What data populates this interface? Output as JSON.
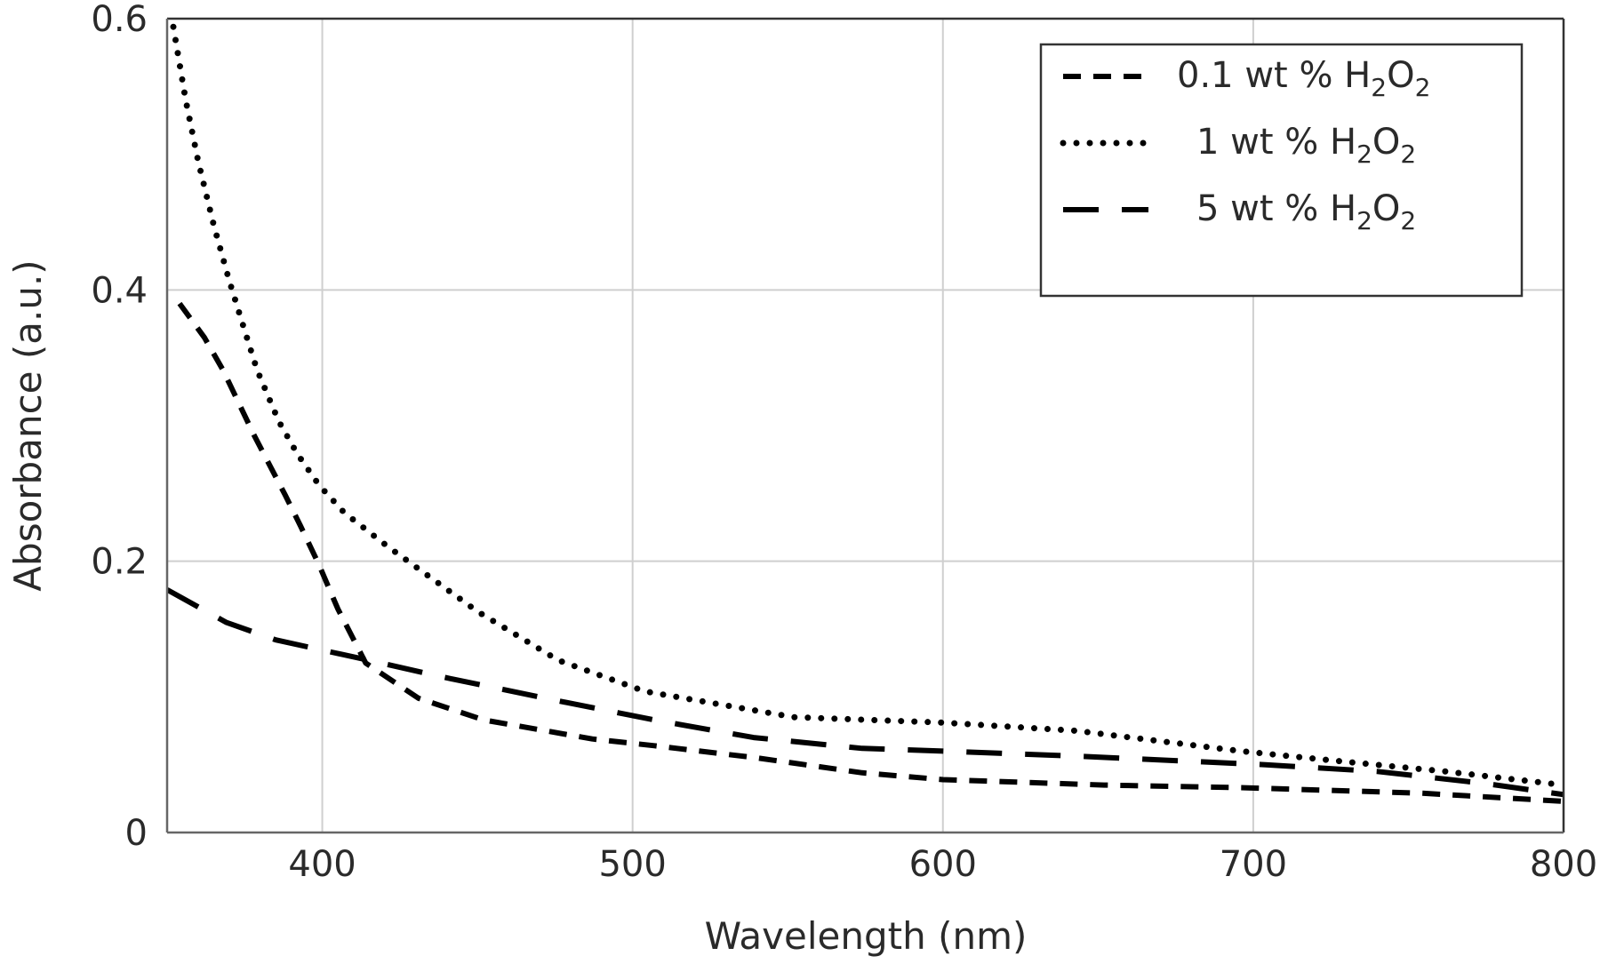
{
  "chart_data": {
    "type": "line",
    "title": "",
    "xlabel": "Wavelength (nm)",
    "ylabel": "Absorbance (a.u.)",
    "xlim": [
      350,
      800
    ],
    "ylim": [
      0,
      0.6
    ],
    "xticks": [
      400,
      500,
      600,
      700,
      800
    ],
    "yticks": [
      0,
      0.2,
      0.4,
      0.6
    ],
    "xtick_labels": [
      "400",
      "500",
      "600",
      "700",
      "800"
    ],
    "ytick_labels": [
      "0",
      "0.2",
      "0.4",
      "0.6"
    ],
    "grid": true,
    "legend_position": "upper right",
    "series": [
      {
        "name": "0.1 wt % H2O2",
        "label_parts": [
          "0.1 wt % H",
          "2",
          "O",
          "2"
        ],
        "style": "dashed",
        "color": "#000000",
        "x": [
          354,
          362,
          368,
          373,
          378,
          383,
          388,
          393,
          399,
          405,
          414,
          431,
          452,
          487,
          507,
          540,
          574,
          600,
          652,
          697,
          754,
          800
        ],
        "y": [
          0.39,
          0.365,
          0.341,
          0.317,
          0.293,
          0.271,
          0.249,
          0.226,
          0.197,
          0.165,
          0.125,
          0.099,
          0.083,
          0.069,
          0.064,
          0.055,
          0.044,
          0.039,
          0.035,
          0.033,
          0.029,
          0.023
        ]
      },
      {
        "name": "1 wt % H2O2",
        "label_parts": [
          "1 wt % H",
          "2",
          "O",
          "2"
        ],
        "style": "dotted",
        "color": "#000000",
        "x": [
          352,
          356,
          360,
          365,
          370,
          375,
          379,
          386,
          392,
          399,
          407,
          421,
          450,
          476,
          504,
          552,
          600,
          643,
          696,
          726,
          762,
          800
        ],
        "y": [
          0.594,
          0.54,
          0.495,
          0.448,
          0.407,
          0.37,
          0.341,
          0.303,
          0.279,
          0.256,
          0.236,
          0.211,
          0.163,
          0.127,
          0.104,
          0.085,
          0.081,
          0.075,
          0.06,
          0.053,
          0.045,
          0.035
        ]
      },
      {
        "name": "5 wt % H2O2",
        "label_parts": [
          "5 wt % H",
          "2",
          "O",
          "2"
        ],
        "style": "long-dashed",
        "color": "#000000",
        "x": [
          350,
          369,
          385,
          403,
          415,
          438,
          474,
          507,
          539,
          574,
          600,
          646,
          704,
          740,
          775,
          800
        ],
        "y": [
          0.179,
          0.155,
          0.142,
          0.133,
          0.127,
          0.115,
          0.098,
          0.083,
          0.07,
          0.062,
          0.06,
          0.056,
          0.05,
          0.045,
          0.036,
          0.028
        ]
      }
    ]
  },
  "axes": {
    "xlabel": "Wavelength (nm)",
    "ylabel": "Absorbance (a.u.)",
    "colors": {
      "frame": "#333333",
      "grid": "#cccccc",
      "text": "#2a2a2a",
      "line": "#000000"
    }
  },
  "legend": {
    "items": [
      {
        "text": "0.1 wt % H",
        "sub1": "2",
        "mid": "O",
        "sub2": "2",
        "style": "dashed"
      },
      {
        "text": "1 wt % H",
        "sub1": "2",
        "mid": "O",
        "sub2": "2",
        "style": "dotted"
      },
      {
        "text": "5 wt % H",
        "sub1": "2",
        "mid": "O",
        "sub2": "2",
        "style": "long-dashed"
      }
    ]
  }
}
